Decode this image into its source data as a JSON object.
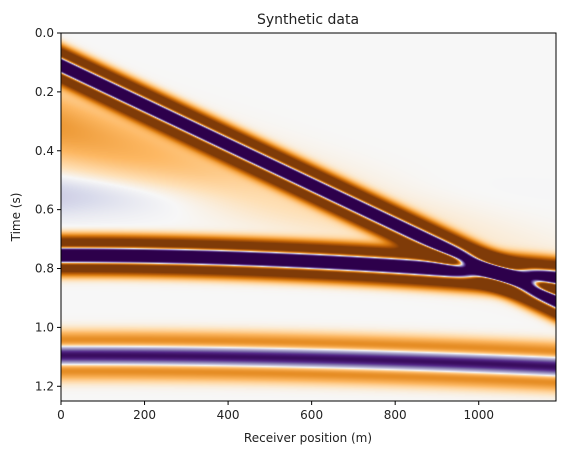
{
  "chart_data": {
    "type": "heatmap",
    "title": "Synthetic data",
    "xlabel": "Receiver position (m)",
    "ylabel": "Time (s)",
    "xlim": [
      0,
      1185
    ],
    "ylim": [
      1.25,
      0.0
    ],
    "y_inverted": true,
    "x_ticks": [
      0,
      200,
      400,
      600,
      800,
      1000
    ],
    "x_tick_labels": [
      "0",
      "200",
      "400",
      "600",
      "800",
      "1000"
    ],
    "y_ticks": [
      0.0,
      0.2,
      0.4,
      0.6,
      0.8,
      1.0,
      1.2
    ],
    "y_tick_labels": [
      "0.0",
      "0.2",
      "0.4",
      "0.6",
      "0.8",
      "1.0",
      "1.2"
    ],
    "colormap": "PuOr",
    "colors": {
      "negative": "#7f3b08",
      "zero": "#f7f7f7",
      "positive": "#2d004b"
    },
    "grid": false,
    "events": [
      {
        "kind": "direct-wave",
        "t0": 0.11,
        "slope": 0.000675,
        "width": 0.035
      },
      {
        "kind": "reflection",
        "t0": 0.755,
        "velocity": 2500,
        "width": 0.035
      },
      {
        "kind": "reflection",
        "t0": 1.095,
        "velocity": 3000,
        "width": 0.02
      }
    ]
  }
}
